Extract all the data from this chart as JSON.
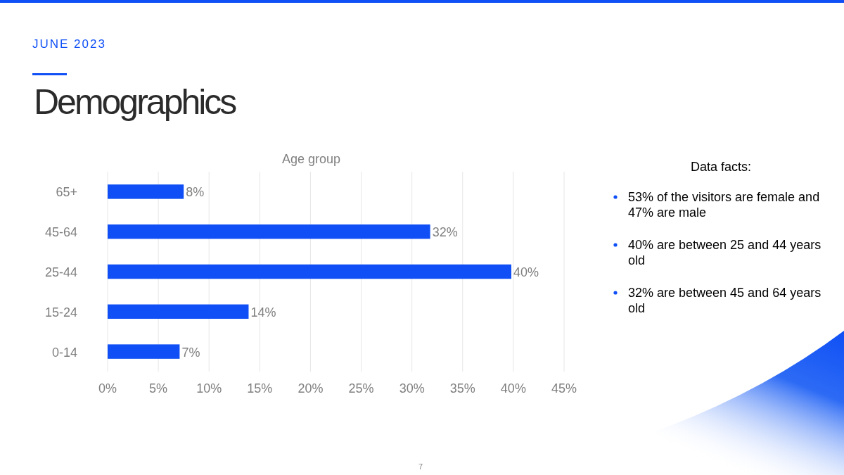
{
  "chart_data": {
    "type": "bar",
    "orientation": "horizontal",
    "subtitle": "JUNE 2023",
    "title": "Demographics",
    "xlabel": "Age group",
    "categories": [
      "65+",
      "45-64",
      "25-44",
      "15-24",
      "0-14"
    ],
    "values": [
      7.5,
      31.8,
      39.8,
      13.9,
      7.1
    ],
    "value_labels": [
      "8%",
      "32%",
      "40%",
      "14%",
      "7%"
    ],
    "color": "#0f4ff5",
    "xlim": [
      0,
      45
    ],
    "xticks": [
      {
        "value": 0,
        "label": "0%"
      },
      {
        "value": 5,
        "label": "5%"
      },
      {
        "value": 10,
        "label": "10%"
      },
      {
        "value": 15,
        "label": "15%"
      },
      {
        "value": 20,
        "label": "20%"
      },
      {
        "value": 25,
        "label": "25%"
      },
      {
        "value": 30,
        "label": "30%"
      },
      {
        "value": 35,
        "label": "35%"
      },
      {
        "value": 40,
        "label": "40%"
      },
      {
        "value": 45,
        "label": "45%"
      }
    ],
    "grid": "x",
    "annotations": [
      "Data facts:",
      "53% of the visitors are female and 47% are male",
      "40% are between 25 and 44 years old",
      "32% are between 45 and 64 years old",
      "7"
    ]
  }
}
